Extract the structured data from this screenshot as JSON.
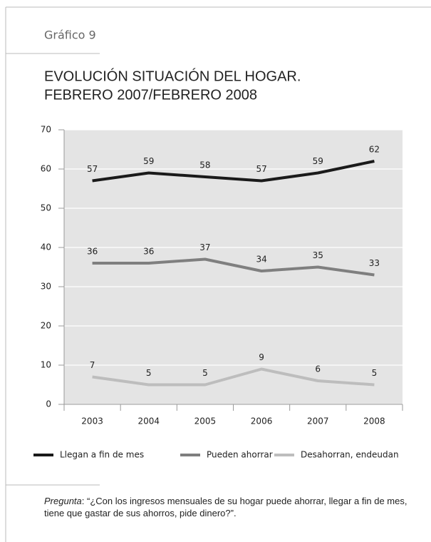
{
  "figure_label": "Gráfico 9",
  "chart_data": {
    "type": "line",
    "title": [
      "EVOLUCIÓN SITUACIÓN DEL HOGAR.",
      "FEBRERO 2007/FEBRERO 2008"
    ],
    "categories": [
      "2003",
      "2004",
      "2005",
      "2006",
      "2007",
      "2008"
    ],
    "series": [
      {
        "name": "Llegan a fin de mes",
        "color": "#1a1a1a",
        "values": [
          57,
          59,
          58,
          57,
          59,
          62
        ]
      },
      {
        "name": "Pueden ahorrar",
        "color": "#7f7f7f",
        "values": [
          36,
          36,
          37,
          34,
          35,
          33
        ]
      },
      {
        "name": "Desahorran, endeudan",
        "color": "#bdbdbd",
        "values": [
          7,
          5,
          5,
          9,
          6,
          5
        ]
      }
    ],
    "ylim": [
      0,
      70
    ],
    "yticks": [
      0,
      10,
      20,
      30,
      40,
      50,
      60,
      70
    ],
    "grid": true,
    "legend": "bottom"
  },
  "note": {
    "label": "Pregunta",
    "text": ": “¿Con los ingresos mensuales de su hogar puede ahorrar, llegar a fin de mes, tiene que gastar de sus ahorros, pide dinero?”."
  }
}
